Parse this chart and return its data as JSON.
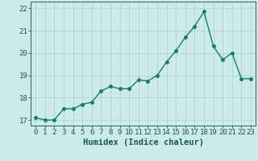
{
  "x": [
    0,
    1,
    2,
    3,
    4,
    5,
    6,
    7,
    8,
    9,
    10,
    11,
    12,
    13,
    14,
    15,
    16,
    17,
    18,
    19,
    20,
    21,
    22,
    23
  ],
  "y": [
    17.1,
    17.0,
    17.0,
    17.5,
    17.5,
    17.7,
    17.8,
    18.3,
    18.5,
    18.4,
    18.4,
    18.8,
    18.75,
    19.0,
    19.6,
    20.1,
    20.7,
    21.2,
    21.85,
    20.3,
    19.7,
    20.0,
    18.85,
    18.85
  ],
  "line_color": "#1a7a6e",
  "marker": "o",
  "markersize": 2.5,
  "linewidth": 1.0,
  "background_color": "#cceae8",
  "grid_color": "#aad4d0",
  "xlabel": "Humidex (Indice chaleur)",
  "xlabel_fontsize": 7.5,
  "xlim": [
    -0.5,
    23.5
  ],
  "ylim": [
    16.75,
    22.3
  ],
  "yticks": [
    17,
    18,
    19,
    20,
    21,
    22
  ],
  "xticks": [
    0,
    1,
    2,
    3,
    4,
    5,
    6,
    7,
    8,
    9,
    10,
    11,
    12,
    13,
    14,
    15,
    16,
    17,
    18,
    19,
    20,
    21,
    22,
    23
  ],
  "tick_color": "#1a5555",
  "tick_labelsize": 6.5,
  "spine_color": "#2a6060"
}
